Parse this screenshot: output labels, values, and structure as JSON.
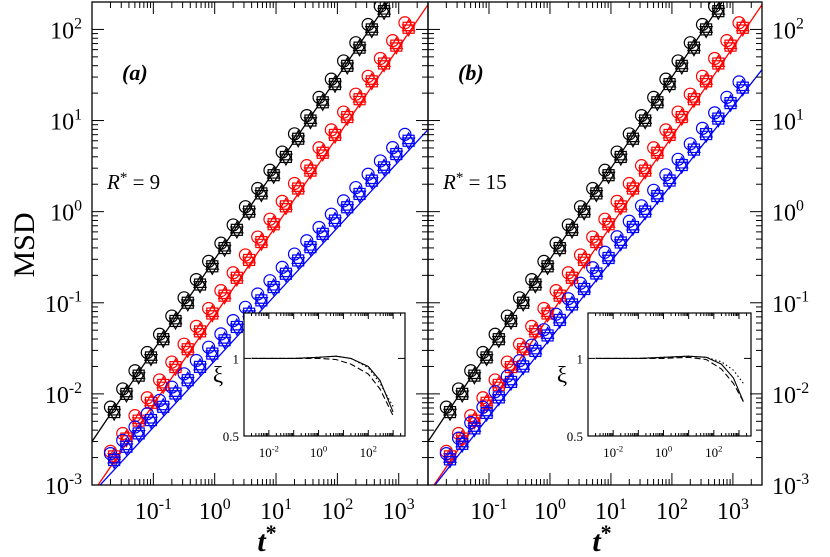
{
  "figure": {
    "ylabel": "MSD",
    "xlabel_main": "t",
    "xlabel_sup": "*",
    "y_ticks": [
      {
        "exp": -3,
        "label_base": "10",
        "label_exp": "-3"
      },
      {
        "exp": -2,
        "label_base": "10",
        "label_exp": "-2"
      },
      {
        "exp": -1,
        "label_base": "10",
        "label_exp": "-1"
      },
      {
        "exp": 0,
        "label_base": "10",
        "label_exp": "0"
      },
      {
        "exp": 1,
        "label_base": "10",
        "label_exp": "1"
      },
      {
        "exp": 2,
        "label_base": "10",
        "label_exp": "2"
      }
    ],
    "x_ticks": [
      {
        "exp": -1,
        "label_base": "10",
        "label_exp": "-1"
      },
      {
        "exp": 0,
        "label_base": "10",
        "label_exp": "0"
      },
      {
        "exp": 1,
        "label_base": "10",
        "label_exp": "1"
      },
      {
        "exp": 2,
        "label_base": "10",
        "label_exp": "2"
      },
      {
        "exp": 3,
        "label_base": "10",
        "label_exp": "3"
      }
    ],
    "colors": {
      "black": "#000000",
      "red": "#ff0000",
      "blue": "#0000ff"
    }
  },
  "chart_data": [
    {
      "type": "scatter",
      "panel_label": "(a)",
      "annotation": {
        "symbol": "R",
        "sup": "*",
        "rest": " = 9"
      },
      "xscale": "log",
      "yscale": "log",
      "xlim": [
        0.01,
        3000
      ],
      "ylim": [
        0.001,
        200
      ],
      "ylabel": "MSD",
      "xlabel": "t*",
      "series": [
        {
          "name": "black circles",
          "color": "black",
          "marker": "circle",
          "t0": 0.02,
          "y0": 0.0055,
          "exponent": 1.0,
          "x_offset_dec": 0.0,
          "y_factor": 1.3
        },
        {
          "name": "black squares",
          "color": "black",
          "marker": "square",
          "t0": 0.02,
          "y0": 0.0055,
          "exponent": 1.0,
          "x_offset_dec": 0.06,
          "y_factor": 1.0
        },
        {
          "name": "black triangles up",
          "color": "black",
          "marker": "triangle-up",
          "t0": 0.02,
          "y0": 0.0055,
          "exponent": 1.0,
          "x_offset_dec": 0.06,
          "y_factor": 1.05
        },
        {
          "name": "black triangles down",
          "color": "black",
          "marker": "triangle-down",
          "t0": 0.02,
          "y0": 0.0055,
          "exponent": 1.0,
          "x_offset_dec": 0.06,
          "y_factor": 0.95
        },
        {
          "name": "red circles",
          "color": "red",
          "marker": "circle",
          "t0": 0.02,
          "y0": 0.0018,
          "exponent": 0.98,
          "x_offset_dec": 0.0,
          "y_factor": 1.3
        },
        {
          "name": "red squares",
          "color": "red",
          "marker": "square",
          "t0": 0.02,
          "y0": 0.0018,
          "exponent": 0.98,
          "x_offset_dec": 0.06,
          "y_factor": 1.0
        },
        {
          "name": "red triangles up",
          "color": "red",
          "marker": "triangle-up",
          "t0": 0.02,
          "y0": 0.0018,
          "exponent": 0.98,
          "x_offset_dec": 0.06,
          "y_factor": 1.05
        },
        {
          "name": "red triangles down",
          "color": "red",
          "marker": "triangle-down",
          "t0": 0.02,
          "y0": 0.0018,
          "exponent": 0.98,
          "x_offset_dec": 0.06,
          "y_factor": 0.95
        },
        {
          "name": "blue circles",
          "color": "blue",
          "marker": "circle",
          "t0": 0.02,
          "y0": 0.0017,
          "exponent": 0.73,
          "x_offset_dec": 0.0,
          "y_factor": 1.3
        },
        {
          "name": "blue squares",
          "color": "blue",
          "marker": "square",
          "t0": 0.02,
          "y0": 0.0017,
          "exponent": 0.73,
          "x_offset_dec": 0.06,
          "y_factor": 1.0
        },
        {
          "name": "blue triangles up",
          "color": "blue",
          "marker": "triangle-up",
          "t0": 0.02,
          "y0": 0.0017,
          "exponent": 0.73,
          "x_offset_dec": 0.06,
          "y_factor": 1.05
        },
        {
          "name": "blue triangles down",
          "color": "blue",
          "marker": "triangle-down",
          "t0": 0.02,
          "y0": 0.0017,
          "exponent": 0.73,
          "x_offset_dec": 0.06,
          "y_factor": 0.95
        }
      ],
      "fit_lines": [
        {
          "color": "black",
          "t0": 0.01,
          "y0": 0.003,
          "exponent": 1.0
        },
        {
          "color": "red",
          "t0": 0.01,
          "y0": 0.0008,
          "exponent": 0.98
        },
        {
          "color": "blue",
          "t0": 0.01,
          "y0": 0.0008,
          "exponent": 0.73
        }
      ],
      "inset": {
        "ylabel": "ξ",
        "xlim": [
          0.001,
          3000
        ],
        "ylim": [
          0.5,
          1.5
        ],
        "x_ticks": [
          {
            "exp": -2,
            "label_base": "10",
            "label_exp": "-2"
          },
          {
            "exp": 0,
            "label_base": "10",
            "label_exp": "0"
          },
          {
            "exp": 2,
            "label_base": "10",
            "label_exp": "2"
          }
        ],
        "y_ticks": [
          {
            "value": 0.5,
            "label": "0.5"
          },
          {
            "value": 1,
            "label": "1"
          }
        ],
        "curves": [
          {
            "style": "solid",
            "points": [
              [
                0.002,
                1.0
              ],
              [
                0.1,
                1.0
              ],
              [
                1,
                1.01
              ],
              [
                5,
                1.02
              ],
              [
                20,
                1.0
              ],
              [
                100,
                0.93
              ],
              [
                300,
                0.82
              ],
              [
                1000,
                0.62
              ]
            ]
          },
          {
            "style": "dashed",
            "points": [
              [
                0.002,
                1.0
              ],
              [
                0.1,
                1.0
              ],
              [
                1,
                1.0
              ],
              [
                5,
                0.99
              ],
              [
                20,
                0.95
              ],
              [
                100,
                0.87
              ],
              [
                300,
                0.76
              ],
              [
                1000,
                0.6
              ]
            ]
          },
          {
            "style": "dotted",
            "points": [
              [
                0.002,
                1.0
              ],
              [
                0.1,
                1.0
              ],
              [
                1,
                1.01
              ],
              [
                5,
                1.02
              ],
              [
                20,
                1.0
              ],
              [
                100,
                0.92
              ],
              [
                300,
                0.8
              ],
              [
                1000,
                0.65
              ]
            ]
          }
        ]
      }
    },
    {
      "type": "scatter",
      "panel_label": "(b)",
      "annotation": {
        "symbol": "R",
        "sup": "*",
        "rest": " = 15"
      },
      "xscale": "log",
      "yscale": "log",
      "xlim": [
        0.01,
        3000
      ],
      "ylim": [
        0.001,
        200
      ],
      "ylabel": "MSD",
      "xlabel": "t*",
      "series": [
        {
          "name": "black circles",
          "color": "black",
          "marker": "circle",
          "t0": 0.02,
          "y0": 0.0055,
          "exponent": 1.0,
          "x_offset_dec": 0.0,
          "y_factor": 1.3
        },
        {
          "name": "black squares",
          "color": "black",
          "marker": "square",
          "t0": 0.02,
          "y0": 0.0055,
          "exponent": 1.0,
          "x_offset_dec": 0.06,
          "y_factor": 1.0
        },
        {
          "name": "black triangles up",
          "color": "black",
          "marker": "triangle-up",
          "t0": 0.02,
          "y0": 0.0055,
          "exponent": 1.0,
          "x_offset_dec": 0.06,
          "y_factor": 1.05
        },
        {
          "name": "black triangles down",
          "color": "black",
          "marker": "triangle-down",
          "t0": 0.02,
          "y0": 0.0055,
          "exponent": 1.0,
          "x_offset_dec": 0.06,
          "y_factor": 0.95
        },
        {
          "name": "red circles",
          "color": "red",
          "marker": "circle",
          "t0": 0.02,
          "y0": 0.0018,
          "exponent": 0.98,
          "x_offset_dec": 0.0,
          "y_factor": 1.3
        },
        {
          "name": "red squares",
          "color": "red",
          "marker": "square",
          "t0": 0.02,
          "y0": 0.0018,
          "exponent": 0.98,
          "x_offset_dec": 0.06,
          "y_factor": 1.0
        },
        {
          "name": "red triangles up",
          "color": "red",
          "marker": "triangle-up",
          "t0": 0.02,
          "y0": 0.0018,
          "exponent": 0.98,
          "x_offset_dec": 0.06,
          "y_factor": 1.05
        },
        {
          "name": "red triangles down",
          "color": "red",
          "marker": "triangle-down",
          "t0": 0.02,
          "y0": 0.0018,
          "exponent": 0.98,
          "x_offset_dec": 0.06,
          "y_factor": 0.95
        },
        {
          "name": "blue circles",
          "color": "blue",
          "marker": "circle",
          "t0": 0.02,
          "y0": 0.0017,
          "exponent": 0.85,
          "x_offset_dec": 0.0,
          "y_factor": 1.3
        },
        {
          "name": "blue squares",
          "color": "blue",
          "marker": "square",
          "t0": 0.02,
          "y0": 0.0017,
          "exponent": 0.85,
          "x_offset_dec": 0.06,
          "y_factor": 1.0
        },
        {
          "name": "blue triangles up",
          "color": "blue",
          "marker": "triangle-up",
          "t0": 0.02,
          "y0": 0.0017,
          "exponent": 0.85,
          "x_offset_dec": 0.06,
          "y_factor": 1.05
        },
        {
          "name": "blue triangles down",
          "color": "blue",
          "marker": "triangle-down",
          "t0": 0.02,
          "y0": 0.0017,
          "exponent": 0.85,
          "x_offset_dec": 0.06,
          "y_factor": 0.95
        }
      ],
      "fit_lines": [
        {
          "color": "black",
          "t0": 0.01,
          "y0": 0.003,
          "exponent": 1.0
        },
        {
          "color": "red",
          "t0": 0.01,
          "y0": 0.0008,
          "exponent": 0.98
        },
        {
          "color": "blue",
          "t0": 0.01,
          "y0": 0.0008,
          "exponent": 0.85
        }
      ],
      "inset": {
        "ylabel": "ξ",
        "xlim": [
          0.001,
          3000
        ],
        "ylim": [
          0.5,
          1.5
        ],
        "x_ticks": [
          {
            "exp": -2,
            "label_base": "10",
            "label_exp": "-2"
          },
          {
            "exp": 0,
            "label_base": "10",
            "label_exp": "0"
          },
          {
            "exp": 2,
            "label_base": "10",
            "label_exp": "2"
          }
        ],
        "y_ticks": [
          {
            "value": 0.5,
            "label": "0.5"
          },
          {
            "value": 1,
            "label": "1"
          }
        ],
        "curves": [
          {
            "style": "solid",
            "points": [
              [
                0.002,
                1.0
              ],
              [
                0.1,
                1.0
              ],
              [
                1,
                1.01
              ],
              [
                10,
                1.02
              ],
              [
                50,
                1.01
              ],
              [
                200,
                0.95
              ],
              [
                600,
                0.84
              ],
              [
                1500,
                0.68
              ]
            ]
          },
          {
            "style": "dashed",
            "points": [
              [
                0.002,
                1.0
              ],
              [
                0.1,
                1.0
              ],
              [
                1,
                1.0
              ],
              [
                10,
                1.01
              ],
              [
                50,
                0.99
              ],
              [
                200,
                0.91
              ],
              [
                600,
                0.8
              ],
              [
                1500,
                0.68
              ]
            ]
          },
          {
            "style": "dotted",
            "points": [
              [
                0.002,
                1.0
              ],
              [
                0.1,
                1.0
              ],
              [
                1,
                1.01
              ],
              [
                10,
                1.02
              ],
              [
                50,
                1.01
              ],
              [
                200,
                0.97
              ],
              [
                600,
                0.9
              ],
              [
                1500,
                0.8
              ]
            ]
          }
        ]
      }
    }
  ]
}
